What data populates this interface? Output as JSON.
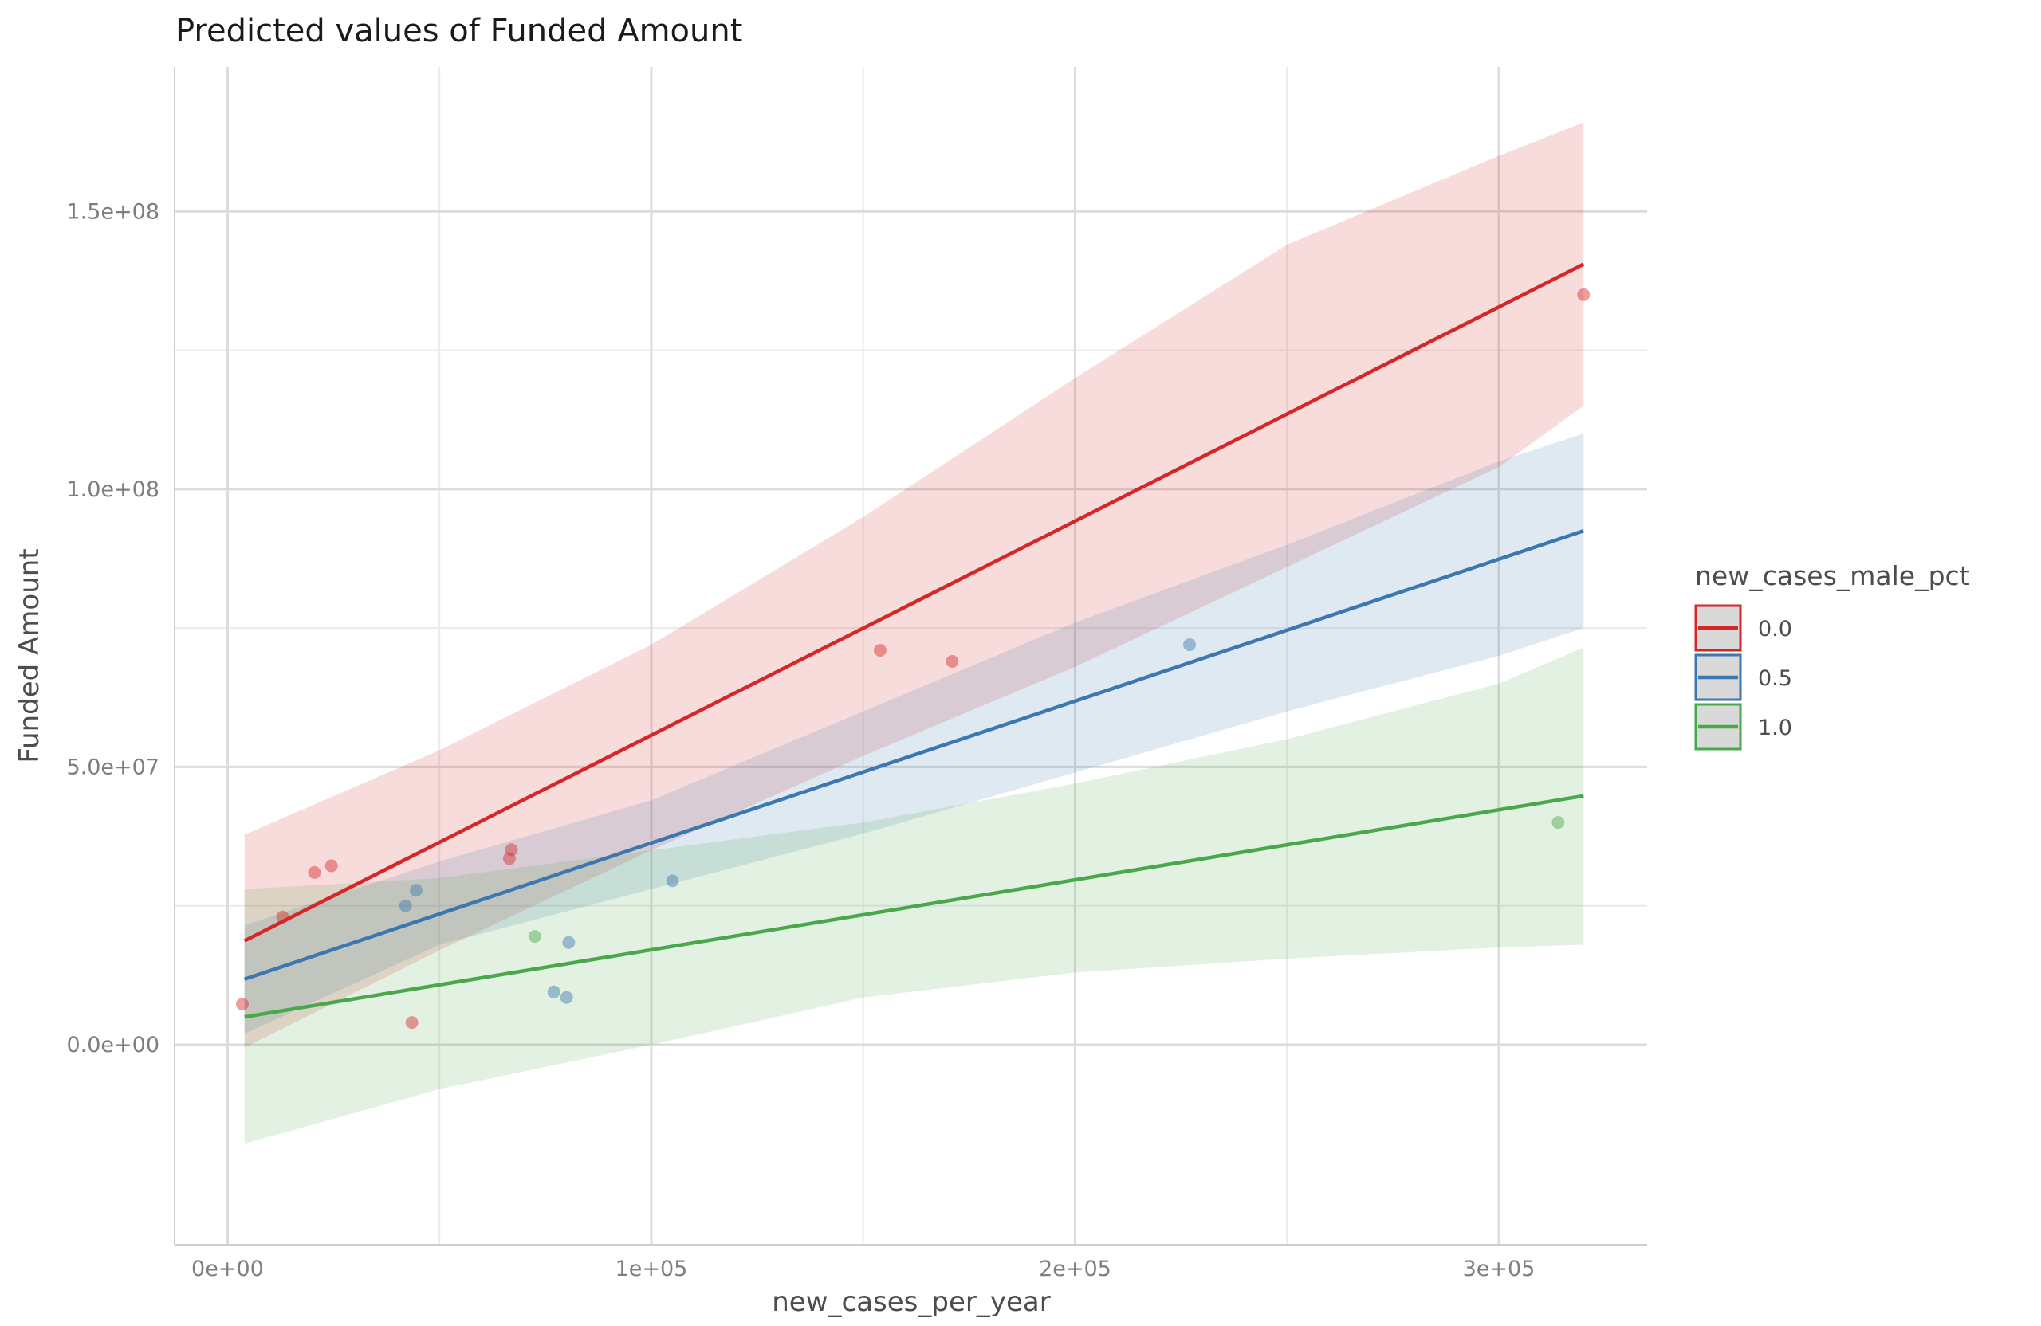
{
  "chart_data": {
    "type": "line",
    "title": "Predicted values of Funded Amount",
    "xlabel": "new_cases_per_year",
    "ylabel": "Funded Amount",
    "xlim": [
      -12500,
      335000
    ],
    "ylim": [
      -36000000,
      176000000
    ],
    "x_major_ticks": [
      0,
      100000,
      200000,
      300000
    ],
    "x_tick_labels": [
      "0e+00",
      "1e+05",
      "2e+05",
      "3e+05"
    ],
    "x_minor_ticks": [
      50000,
      150000,
      250000
    ],
    "y_major_ticks": [
      0,
      50000000,
      100000000,
      150000000
    ],
    "y_tick_labels": [
      "0.0e+00",
      "5.0e+07",
      "1.0e+08",
      "1.5e+08"
    ],
    "y_minor_ticks": [
      25000000,
      75000000,
      125000000
    ],
    "legend": {
      "title": "new_cases_male_pct",
      "position": "right",
      "entries": [
        "0.0",
        "0.5",
        "1.0"
      ]
    },
    "series": [
      {
        "name": "0.0",
        "color": "#d62728",
        "x": [
          4000,
          320000
        ],
        "y": [
          18700000,
          140500000
        ],
        "ci_x": [
          4000,
          50000,
          100000,
          150000,
          200000,
          250000,
          300000,
          320000
        ],
        "ci_lower": [
          -500000,
          17000000,
          35000000,
          52000000,
          68000000,
          86000000,
          104000000,
          115000000
        ],
        "ci_upper": [
          37800000,
          53000000,
          72000000,
          95000000,
          120000000,
          144000000,
          160000000,
          166000000
        ]
      },
      {
        "name": "0.5",
        "color": "#3b78b0",
        "x": [
          4000,
          320000
        ],
        "y": [
          11800000,
          92500000
        ],
        "ci_x": [
          4000,
          50000,
          100000,
          150000,
          200000,
          250000,
          300000,
          320000
        ],
        "ci_lower": [
          2000000,
          18000000,
          28000000,
          38000000,
          49000000,
          60000000,
          70000000,
          75000000
        ],
        "ci_upper": [
          21500000,
          33000000,
          44000000,
          60000000,
          76000000,
          90000000,
          105000000,
          110000000
        ]
      },
      {
        "name": "1.0",
        "color": "#4aa84a",
        "x": [
          4000,
          320000
        ],
        "y": [
          5000000,
          44800000
        ],
        "ci_x": [
          4000,
          50000,
          100000,
          150000,
          200000,
          250000,
          300000,
          320000
        ],
        "ci_lower": [
          -17800000,
          -8000000,
          0,
          8500000,
          13000000,
          15500000,
          17500000,
          18000000
        ],
        "ci_upper": [
          28000000,
          30000000,
          35000000,
          40000000,
          47000000,
          55000000,
          65000000,
          71500000
        ]
      }
    ],
    "points": [
      {
        "x": 3500,
        "y": 7300000,
        "series": "0.0"
      },
      {
        "x": 13000,
        "y": 23000000,
        "series": "0.0"
      },
      {
        "x": 20500,
        "y": 31000000,
        "series": "0.0"
      },
      {
        "x": 24500,
        "y": 32200000,
        "series": "0.0"
      },
      {
        "x": 42000,
        "y": 25000000,
        "series": "0.5"
      },
      {
        "x": 44500,
        "y": 27800000,
        "series": "0.5"
      },
      {
        "x": 43500,
        "y": 4000000,
        "series": "0.0"
      },
      {
        "x": 66500,
        "y": 33500000,
        "series": "0.0"
      },
      {
        "x": 67000,
        "y": 35100000,
        "series": "0.0"
      },
      {
        "x": 72500,
        "y": 19500000,
        "series": "1.0"
      },
      {
        "x": 77000,
        "y": 9500000,
        "series": "0.5"
      },
      {
        "x": 80000,
        "y": 8500000,
        "series": "0.5"
      },
      {
        "x": 80500,
        "y": 18400000,
        "series": "0.5"
      },
      {
        "x": 105000,
        "y": 29500000,
        "series": "0.5"
      },
      {
        "x": 154000,
        "y": 71000000,
        "series": "0.0"
      },
      {
        "x": 171000,
        "y": 69000000,
        "series": "0.0"
      },
      {
        "x": 227000,
        "y": 72000000,
        "series": "0.5"
      },
      {
        "x": 314000,
        "y": 40000000,
        "series": "1.0"
      },
      {
        "x": 320000,
        "y": 135000000,
        "series": "0.0"
      }
    ]
  }
}
